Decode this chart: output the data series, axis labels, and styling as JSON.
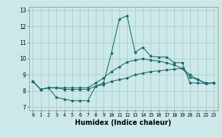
{
  "title": "",
  "xlabel": "Humidex (Indice chaleur)",
  "ylabel": "",
  "bg_color": "#cce8e8",
  "line_color": "#1a6b6b",
  "grid_color": "#aacccc",
  "xlim": [
    -0.5,
    23.5
  ],
  "ylim": [
    6.8,
    13.2
  ],
  "xticks": [
    0,
    1,
    2,
    3,
    4,
    5,
    6,
    7,
    8,
    9,
    10,
    11,
    12,
    13,
    14,
    15,
    16,
    17,
    18,
    19,
    20,
    21,
    22,
    23
  ],
  "yticks": [
    7,
    8,
    9,
    10,
    11,
    12,
    13
  ],
  "series": [
    {
      "x": [
        0,
        1,
        2,
        3,
        4,
        5,
        6,
        7,
        8,
        9,
        10,
        11,
        12,
        13,
        14,
        15,
        16,
        17,
        18,
        19,
        20,
        21,
        22,
        23
      ],
      "y": [
        8.6,
        8.1,
        8.2,
        7.6,
        7.5,
        7.4,
        7.4,
        7.4,
        8.3,
        8.5,
        10.35,
        12.45,
        12.65,
        10.4,
        10.7,
        10.15,
        10.1,
        10.1,
        9.75,
        9.75,
        8.5,
        8.5,
        8.45,
        8.5
      ]
    },
    {
      "x": [
        0,
        1,
        2,
        3,
        4,
        5,
        6,
        7,
        8,
        9,
        10,
        11,
        12,
        13,
        14,
        15,
        16,
        17,
        18,
        19,
        20,
        21,
        22,
        23
      ],
      "y": [
        8.6,
        8.1,
        8.2,
        8.2,
        8.2,
        8.2,
        8.2,
        8.2,
        8.5,
        8.8,
        9.2,
        9.5,
        9.8,
        9.9,
        10.0,
        9.9,
        9.85,
        9.75,
        9.6,
        9.4,
        9.0,
        8.7,
        8.5,
        8.5
      ]
    },
    {
      "x": [
        0,
        1,
        2,
        3,
        4,
        5,
        6,
        7,
        8,
        9,
        10,
        11,
        12,
        13,
        14,
        15,
        16,
        17,
        18,
        19,
        20,
        21,
        22,
        23
      ],
      "y": [
        8.6,
        8.1,
        8.2,
        8.2,
        8.1,
        8.1,
        8.1,
        8.1,
        8.3,
        8.4,
        8.6,
        8.7,
        8.8,
        9.0,
        9.1,
        9.2,
        9.25,
        9.3,
        9.35,
        9.4,
        8.85,
        8.7,
        8.45,
        8.5
      ]
    }
  ]
}
